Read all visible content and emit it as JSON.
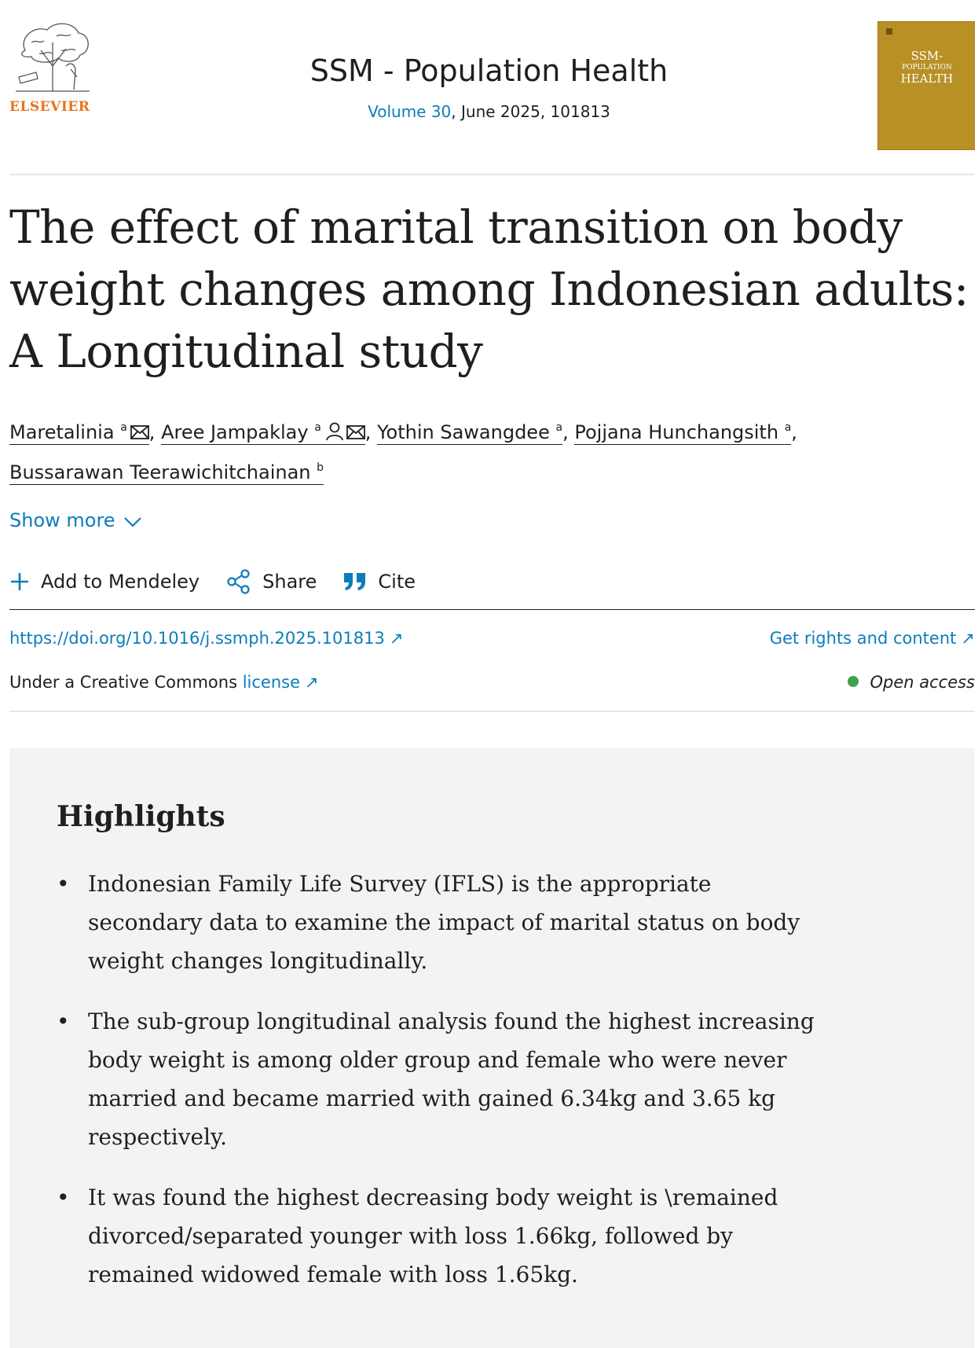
{
  "header": {
    "publisher": "ELSEVIER",
    "journal_title": "SSM - Population Health",
    "volume_link": "Volume 30",
    "issue_rest": ", June 2025, 101813",
    "cover": {
      "line1": "SSM-",
      "line2": "POPULATION",
      "line3": "HEALTH",
      "color": "#b89025"
    }
  },
  "article": {
    "title": "The effect of marital transition on body weight changes among Indonesian adults: A Longitudinal study"
  },
  "authors": [
    {
      "name": "Maretalinia",
      "aff": "a",
      "icons": [
        "mail-icon"
      ]
    },
    {
      "name": "Aree Jampaklay",
      "aff": "a",
      "icons": [
        "person-icon",
        "mail-icon"
      ]
    },
    {
      "name": "Yothin Sawangdee",
      "aff": "a",
      "icons": []
    },
    {
      "name": "Pojjana Hunchangsith",
      "aff": "a",
      "icons": []
    },
    {
      "name": "Bussarawan Teerawichitchainan",
      "aff": "b",
      "icons": []
    }
  ],
  "show_more": "Show more",
  "actions": {
    "mendeley": "Add to Mendeley",
    "share": "Share",
    "cite": "Cite"
  },
  "links": {
    "doi": "https://doi.org/10.1016/j.ssmph.2025.101813",
    "rights": "Get rights and content",
    "license_prefix": "Under a Creative Commons ",
    "license_link": "license",
    "open_access": "Open access"
  },
  "highlights": {
    "title": "Highlights",
    "items": [
      "Indonesian Family Life Survey (IFLS) is the appropriate secondary data to examine the impact of marital status on body weight changes longitudinally.",
      "The sub-group longitudinal analysis found the highest increasing body weight is among older group and female who were never married and became married with gained 6.34kg and 3.65 kg respectively.",
      "It was found the highest decreasing body weight is \\remained divorced/separated younger with loss 1.66kg, followed by remained widowed female with loss 1.65kg."
    ]
  },
  "colors": {
    "link": "#0c7dbb",
    "publisher": "#e9711c",
    "open_access_dot": "#3da34a",
    "highlights_bg": "#f3f3f3"
  }
}
